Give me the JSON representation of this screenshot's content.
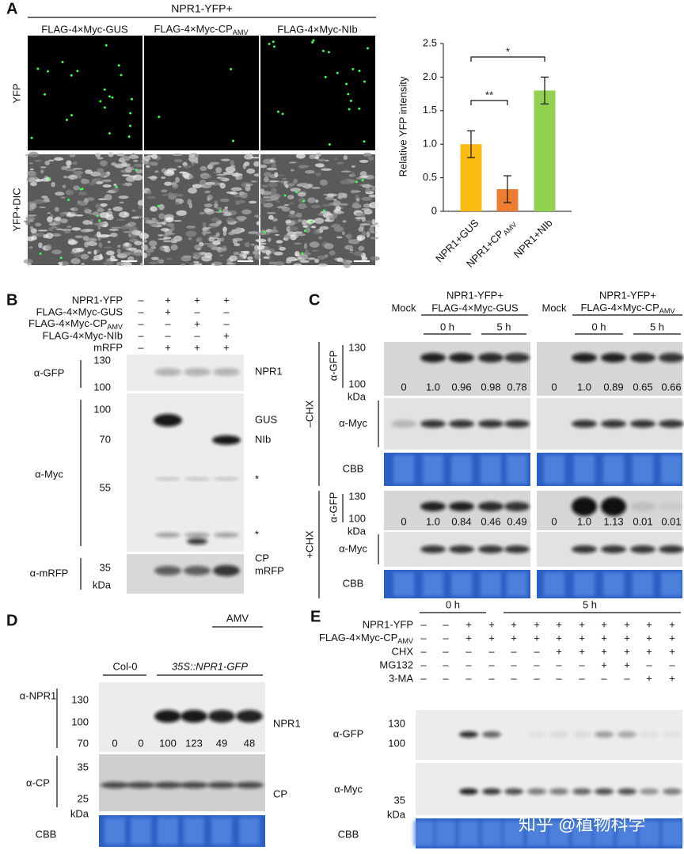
{
  "chart_data": {
    "type": "bar",
    "ylabel": "Relative YFP intensity",
    "categories": [
      "NPR1+GUS",
      {
        "text": "NPR1+CP",
        "sub": "AMV"
      },
      "NPR1+NIb"
    ],
    "values": [
      1.0,
      0.33,
      1.8
    ],
    "errors": [
      0.2,
      0.2,
      0.2
    ],
    "colors": [
      "#fbbb12",
      "#ed7d31",
      "#92d050"
    ],
    "ylim": [
      0,
      2.5
    ],
    "yticks": [
      0,
      0.5,
      {
        "value": 1,
        "label": "1.0"
      },
      1.5,
      {
        "value": 2,
        "label": "2.0"
      },
      2.5
    ],
    "significance": [
      "**",
      "*"
    ]
  },
  "panel_a": {
    "label": "A",
    "header": "NPR1-YFP+",
    "columns": [
      "FLAG-4×Myc-GUS",
      {
        "text": "FLAG-4×Myc-CP",
        "sub": "AMV"
      },
      "FLAG-4×Myc-NIb"
    ],
    "rows": [
      "YFP",
      "YFP+DIC"
    ]
  },
  "panel_b": {
    "label": "B",
    "conditions": [
      {
        "name": "NPR1-YFP",
        "signs": [
          "–",
          "+",
          "+",
          "+"
        ]
      },
      {
        "name": "FLAG-4×Myc-GUS",
        "signs": [
          "–",
          "+",
          "–",
          "–"
        ]
      },
      {
        "name": {
          "text": "FLAG-4×Myc-CP",
          "sub": "AMV"
        },
        "signs": [
          "–",
          "–",
          "+",
          "–"
        ]
      },
      {
        "name": "FLAG-4×Myc-NIb",
        "signs": [
          "–",
          "–",
          "–",
          "+"
        ]
      },
      {
        "name": "mRFP",
        "signs": [
          "–",
          "+",
          "+",
          "+"
        ]
      }
    ],
    "gfp": {
      "antibody": "α-GFP",
      "markers": [
        "130",
        "100"
      ],
      "bands": [
        "NPR1"
      ]
    },
    "myc": {
      "antibody": "α-Myc",
      "markers": [
        "100",
        "70",
        "55"
      ],
      "bands": [
        "GUS",
        "NIb",
        "*",
        "*",
        "CP"
      ]
    },
    "mrfp": {
      "antibody": "α-mRFP",
      "markers": [
        "35"
      ],
      "unit": "kDa",
      "bands": [
        "mRFP"
      ]
    }
  },
  "panel_c": {
    "label": "C",
    "groups": [
      {
        "mock": "Mock",
        "header": "NPR1-YFP+",
        "construct": "FLAG-4×Myc-GUS",
        "times": [
          "0 h",
          "5 h"
        ]
      },
      {
        "mock": "Mock",
        "header": "NPR1-YFP+",
        "construct": {
          "text": "FLAG-4×Myc-CP",
          "sub": "AMV"
        },
        "times": [
          "0 h",
          "5 h"
        ]
      }
    ],
    "treatments": [
      {
        "name": "–CHX",
        "gfp": "α-GFP",
        "markers": [
          "130",
          "100"
        ],
        "unit": "kDa",
        "quant": [
          [
            "0",
            "1.0",
            "0.96",
            "0.98",
            "0.78"
          ],
          [
            "0",
            "1.0",
            "0.89",
            "0.65",
            "0.66"
          ]
        ],
        "myc": "α-Myc",
        "cbb": "CBB"
      },
      {
        "name": "+CHX",
        "gfp": "α-GFP",
        "markers": [
          "130",
          "100"
        ],
        "unit": "kDa",
        "quant": [
          [
            "0",
            "1.0",
            "0.84",
            "0.46",
            "0.49"
          ],
          [
            "0",
            "1.0",
            "1.13",
            "0.01",
            "0.01"
          ]
        ],
        "myc": "α-Myc",
        "cbb": "CBB"
      }
    ]
  },
  "panel_d": {
    "label": "D",
    "treatment": "AMV",
    "groups": [
      "Col-0",
      "35S::NPR1-GFP"
    ],
    "npr1": {
      "antibody": "α-NPR1",
      "markers": [
        "130",
        "100",
        "70"
      ],
      "quant": [
        "0",
        "0",
        "100",
        "123",
        "49",
        "48"
      ],
      "band": "NPR1"
    },
    "cp": {
      "antibody": "α-CP",
      "markers": [
        "35",
        "25"
      ],
      "unit": "kDa",
      "band": "CP"
    },
    "cbb": "CBB"
  },
  "panel_e": {
    "label": "E",
    "times": [
      "0 h",
      "5 h"
    ],
    "conditions": [
      {
        "name": "NPR1-YFP",
        "signs": [
          "–",
          "–",
          "+",
          "+",
          "+",
          "+",
          "+",
          "+",
          "+",
          "+",
          "+",
          "+"
        ]
      },
      {
        "name": {
          "text": "FLAG-4×Myc-CP",
          "sub": "AMV"
        },
        "signs": [
          "–",
          "–",
          "+",
          "+",
          "+",
          "+",
          "+",
          "+",
          "+",
          "+",
          "+",
          "+"
        ]
      },
      {
        "name": "CHX",
        "signs": [
          "–",
          "–",
          "–",
          "–",
          "–",
          "–",
          "+",
          "+",
          "+",
          "+",
          "+",
          "+"
        ]
      },
      {
        "name": "MG132",
        "signs": [
          "–",
          "–",
          "–",
          "–",
          "–",
          "–",
          "–",
          "–",
          "+",
          "+",
          "–",
          "–"
        ]
      },
      {
        "name": "3-MA",
        "signs": [
          "–",
          "–",
          "–",
          "–",
          "–",
          "–",
          "–",
          "–",
          "–",
          "–",
          "+",
          "+"
        ]
      }
    ],
    "gfp": {
      "antibody": "α-GFP",
      "markers": [
        "130",
        "100"
      ]
    },
    "myc": {
      "antibody": "α-Myc",
      "markers": [
        "35"
      ],
      "unit": "kDa"
    },
    "cbb": "CBB"
  },
  "watermark": "知乎 @植物科学"
}
